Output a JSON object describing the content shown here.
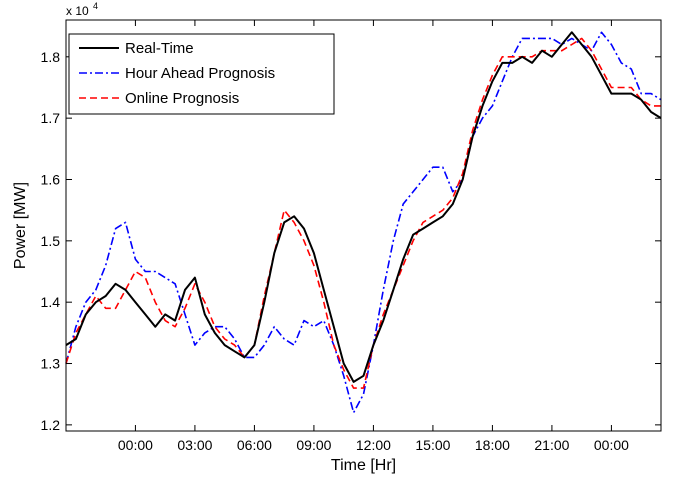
{
  "chart_data": {
    "type": "line",
    "xlabel": "Time [Hr]",
    "ylabel": "Power  [MW]",
    "y_multiplier_label": "x 10",
    "y_multiplier_exp": "4",
    "xlim": [
      -3.5,
      26.5
    ],
    "ylim": [
      1.19,
      1.86
    ],
    "xticks": [
      {
        "value": 0,
        "label": "00:00"
      },
      {
        "value": 3,
        "label": "03:00"
      },
      {
        "value": 6,
        "label": "06:00"
      },
      {
        "value": 9,
        "label": "09:00"
      },
      {
        "value": 12,
        "label": "12:00"
      },
      {
        "value": 15,
        "label": "15:00"
      },
      {
        "value": 18,
        "label": "18:00"
      },
      {
        "value": 21,
        "label": "21:00"
      },
      {
        "value": 24,
        "label": "00:00"
      }
    ],
    "yticks": [
      {
        "value": 1.2,
        "label": "1.2"
      },
      {
        "value": 1.3,
        "label": "1.3"
      },
      {
        "value": 1.4,
        "label": "1.4"
      },
      {
        "value": 1.5,
        "label": "1.5"
      },
      {
        "value": 1.6,
        "label": "1.6"
      },
      {
        "value": 1.7,
        "label": "1.7"
      },
      {
        "value": 1.8,
        "label": "1.8"
      }
    ],
    "grid": false,
    "legend_position": "top-left",
    "series": [
      {
        "name": "Real-Time",
        "color": "#000000",
        "dash": "solid",
        "x": [
          -3.5,
          -3.0,
          -2.5,
          -2.0,
          -1.5,
          -1.0,
          -0.5,
          0.0,
          0.5,
          1.0,
          1.5,
          2.0,
          2.5,
          3.0,
          3.5,
          4.0,
          4.5,
          5.0,
          5.5,
          6.0,
          6.5,
          7.0,
          7.5,
          8.0,
          8.5,
          9.0,
          9.5,
          10.0,
          10.5,
          11.0,
          11.5,
          12.0,
          12.5,
          13.0,
          13.5,
          14.0,
          14.5,
          15.0,
          15.5,
          16.0,
          16.5,
          17.0,
          17.5,
          18.0,
          18.5,
          19.0,
          19.5,
          20.0,
          20.5,
          21.0,
          21.5,
          22.0,
          22.5,
          23.0,
          23.5,
          24.0,
          24.5,
          25.0,
          25.5,
          26.0,
          26.5
        ],
        "values": [
          1.33,
          1.34,
          1.38,
          1.4,
          1.41,
          1.43,
          1.42,
          1.4,
          1.38,
          1.36,
          1.38,
          1.37,
          1.42,
          1.44,
          1.38,
          1.35,
          1.33,
          1.32,
          1.31,
          1.33,
          1.4,
          1.48,
          1.53,
          1.54,
          1.52,
          1.48,
          1.42,
          1.36,
          1.3,
          1.27,
          1.28,
          1.33,
          1.37,
          1.42,
          1.47,
          1.51,
          1.52,
          1.53,
          1.54,
          1.56,
          1.6,
          1.67,
          1.72,
          1.76,
          1.79,
          1.79,
          1.8,
          1.79,
          1.81,
          1.8,
          1.82,
          1.84,
          1.82,
          1.8,
          1.77,
          1.74,
          1.74,
          1.74,
          1.73,
          1.71,
          1.7
        ]
      },
      {
        "name": "Hour Ahead Prognosis",
        "color": "#0000ff",
        "dash": "dashdot",
        "x": [
          -3.5,
          -3.0,
          -2.5,
          -2.0,
          -1.5,
          -1.0,
          -0.5,
          0.0,
          0.5,
          1.0,
          1.5,
          2.0,
          2.5,
          3.0,
          3.5,
          4.0,
          4.5,
          5.0,
          5.5,
          6.0,
          6.5,
          7.0,
          7.5,
          8.0,
          8.5,
          9.0,
          9.5,
          10.0,
          10.5,
          11.0,
          11.5,
          12.0,
          12.5,
          13.0,
          13.5,
          14.0,
          14.5,
          15.0,
          15.5,
          16.0,
          16.5,
          17.0,
          17.5,
          18.0,
          18.5,
          19.0,
          19.5,
          20.0,
          20.5,
          21.0,
          21.5,
          22.0,
          22.5,
          23.0,
          23.5,
          24.0,
          24.5,
          25.0,
          25.5,
          26.0,
          26.5
        ],
        "values": [
          1.3,
          1.36,
          1.4,
          1.42,
          1.46,
          1.52,
          1.53,
          1.47,
          1.45,
          1.45,
          1.44,
          1.43,
          1.38,
          1.33,
          1.35,
          1.36,
          1.36,
          1.34,
          1.31,
          1.31,
          1.33,
          1.36,
          1.34,
          1.33,
          1.37,
          1.36,
          1.37,
          1.33,
          1.28,
          1.22,
          1.25,
          1.33,
          1.42,
          1.5,
          1.56,
          1.58,
          1.6,
          1.62,
          1.62,
          1.58,
          1.6,
          1.67,
          1.7,
          1.72,
          1.76,
          1.8,
          1.83,
          1.83,
          1.83,
          1.83,
          1.82,
          1.83,
          1.82,
          1.81,
          1.84,
          1.82,
          1.79,
          1.78,
          1.74,
          1.74,
          1.73
        ]
      },
      {
        "name": "Online Prognosis",
        "color": "#ff0000",
        "dash": "dashed",
        "x": [
          -3.5,
          -3.0,
          -2.5,
          -2.0,
          -1.5,
          -1.0,
          -0.5,
          0.0,
          0.5,
          1.0,
          1.5,
          2.0,
          2.5,
          3.0,
          3.5,
          4.0,
          4.5,
          5.0,
          5.5,
          6.0,
          6.5,
          7.0,
          7.5,
          8.0,
          8.5,
          9.0,
          9.5,
          10.0,
          10.5,
          11.0,
          11.5,
          12.0,
          12.5,
          13.0,
          13.5,
          14.0,
          14.5,
          15.0,
          15.5,
          16.0,
          16.5,
          17.0,
          17.5,
          18.0,
          18.5,
          19.0,
          19.5,
          20.0,
          20.5,
          21.0,
          21.5,
          22.0,
          22.5,
          23.0,
          23.5,
          24.0,
          24.5,
          25.0,
          25.5,
          26.0,
          26.5
        ],
        "values": [
          1.3,
          1.35,
          1.38,
          1.41,
          1.39,
          1.39,
          1.42,
          1.45,
          1.44,
          1.4,
          1.37,
          1.36,
          1.39,
          1.43,
          1.4,
          1.36,
          1.34,
          1.33,
          1.31,
          1.33,
          1.41,
          1.48,
          1.55,
          1.53,
          1.5,
          1.46,
          1.4,
          1.33,
          1.29,
          1.26,
          1.26,
          1.33,
          1.38,
          1.42,
          1.46,
          1.5,
          1.53,
          1.54,
          1.55,
          1.57,
          1.61,
          1.68,
          1.73,
          1.77,
          1.8,
          1.8,
          1.8,
          1.8,
          1.81,
          1.81,
          1.81,
          1.82,
          1.83,
          1.81,
          1.78,
          1.75,
          1.75,
          1.75,
          1.73,
          1.72,
          1.72
        ]
      }
    ]
  }
}
